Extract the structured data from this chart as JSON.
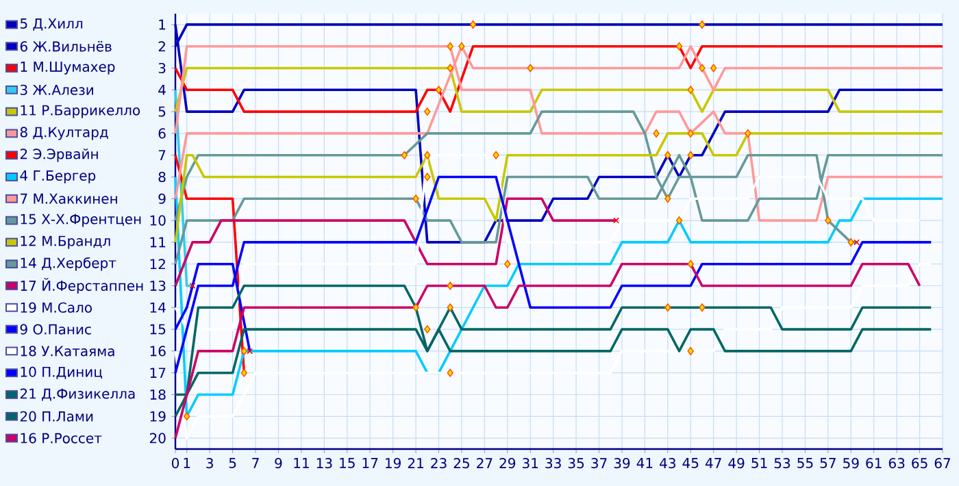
{
  "chart_data": {
    "type": "line",
    "xlim": [
      0,
      67
    ],
    "ylim": [
      20.5,
      0.5
    ],
    "xticks": [
      0,
      1,
      3,
      5,
      7,
      9,
      11,
      13,
      15,
      17,
      19,
      21,
      23,
      25,
      27,
      29,
      31,
      33,
      35,
      37,
      39,
      41,
      43,
      45,
      47,
      49,
      51,
      53,
      55,
      57,
      59,
      61,
      63,
      65,
      67
    ],
    "yticks": [
      1,
      2,
      3,
      4,
      5,
      6,
      7,
      8,
      9,
      10,
      11,
      12,
      13,
      14,
      15,
      16,
      17,
      18,
      19,
      20
    ],
    "grid": true,
    "legend": "left",
    "series": [
      {
        "name": "5 Д.Хилл",
        "color": "#0000c0",
        "x": [
          0,
          1,
          5,
          6,
          21,
          22,
          27,
          28,
          32,
          33,
          36,
          37,
          42,
          43,
          44,
          45,
          46,
          47,
          48,
          57,
          58,
          67
        ],
        "values": [
          1,
          5,
          5,
          4,
          4,
          11,
          11,
          10,
          10,
          9,
          9,
          8,
          8,
          7,
          8,
          7,
          7,
          6,
          5,
          5,
          4,
          4
        ]
      },
      {
        "name": "6 Ж.Вильнёв",
        "color": "#0000c0",
        "x": [
          0,
          1,
          67
        ],
        "values": [
          2,
          1,
          1
        ]
      },
      {
        "name": "1 М.Шумахер",
        "color": "#ff0000",
        "x": [
          0,
          1,
          5,
          6,
          21,
          22,
          23,
          24,
          26,
          44,
          45,
          46,
          67
        ],
        "values": [
          3,
          4,
          4,
          5,
          5,
          4,
          4,
          5,
          2,
          2,
          3,
          2,
          2
        ]
      },
      {
        "name": "3 Ж.Алези",
        "color": "#33ccee",
        "x": [
          0,
          1,
          1.5
        ],
        "values": [
          4,
          13,
          13
        ]
      },
      {
        "name": "11 Р.Баррикелло",
        "color": "#c8c800",
        "x": [
          0,
          1,
          24,
          25,
          31,
          32,
          45,
          46,
          47,
          57,
          58,
          67
        ],
        "values": [
          5,
          3,
          3,
          5,
          5,
          4,
          4,
          5,
          4,
          4,
          5,
          5
        ]
      },
      {
        "name": "8 Д.Култард",
        "color": "#ff9999",
        "x": [
          0,
          1,
          24,
          25,
          31,
          32,
          41,
          42,
          44,
          45,
          47,
          48,
          50,
          51,
          56,
          57,
          67
        ],
        "values": [
          6,
          2,
          2,
          4,
          4,
          6,
          6,
          5,
          5,
          6,
          5,
          6,
          6,
          10,
          10,
          8,
          8
        ]
      },
      {
        "name": "2 Э.Эрвайн",
        "color": "#ff0000",
        "x": [
          0,
          1,
          5,
          6
        ],
        "values": [
          7,
          9,
          9,
          17
        ]
      },
      {
        "name": "4 Г.Бергер",
        "color": "#00ccff",
        "x": [
          0,
          1,
          2,
          5,
          6,
          21,
          22,
          23,
          24,
          26,
          27,
          29,
          30,
          38,
          39,
          43,
          44,
          45,
          57,
          58,
          59,
          60,
          67
        ],
        "values": [
          8,
          19,
          18,
          18,
          16,
          16,
          17,
          17,
          16,
          14,
          13,
          13,
          12,
          12,
          11,
          11,
          10,
          11,
          11,
          10,
          10,
          9,
          9
        ]
      },
      {
        "name": "7 М.Хаккинен",
        "color": "#ff9999",
        "x": [
          0,
          1,
          22,
          25,
          26,
          44,
          45,
          46,
          47,
          48,
          67
        ],
        "values": [
          9,
          6,
          6,
          2,
          3,
          3,
          2,
          3,
          4,
          3,
          3
        ]
      },
      {
        "name": "15 Х-Х.Френтцен",
        "color": "#669999",
        "x": [
          0,
          1,
          2,
          20,
          22,
          31,
          32,
          40,
          41,
          42,
          43,
          44,
          49,
          50,
          56,
          57,
          59,
          59.5
        ],
        "values": [
          10,
          8,
          7,
          7,
          6,
          6,
          5,
          5,
          6,
          8,
          9,
          8,
          8,
          7,
          7,
          10,
          11,
          11
        ]
      },
      {
        "name": "12 М.Брандл",
        "color": "#c8c800",
        "x": [
          0,
          1,
          1.5,
          2.5,
          21,
          22,
          23,
          27,
          28,
          29,
          42,
          43,
          46,
          47,
          49,
          50,
          67
        ],
        "values": [
          11,
          7,
          7,
          8,
          8,
          7,
          9,
          9,
          10,
          7,
          7,
          6,
          6,
          7,
          7,
          6,
          6
        ]
      },
      {
        "name": "14 Д.Херберт",
        "color": "#669999",
        "x": [
          0,
          1,
          5,
          6,
          21,
          22,
          24,
          25,
          28,
          29,
          36,
          37,
          42,
          43,
          44,
          45,
          46,
          50,
          51,
          56,
          57,
          67
        ],
        "values": [
          12,
          10,
          10,
          9,
          9,
          10,
          10,
          11,
          11,
          8,
          8,
          9,
          9,
          8,
          7,
          8,
          10,
          10,
          9,
          9,
          7,
          7
        ]
      },
      {
        "name": "17 Й.Ферстаппен",
        "color": "#cc0066",
        "x": [
          0,
          1.5,
          3,
          4,
          20,
          22,
          28,
          29,
          32,
          33,
          38.5
        ],
        "values": [
          13,
          11,
          11,
          10,
          10,
          12,
          12,
          9,
          9,
          10,
          10
        ]
      },
      {
        "name": "19 М.Сало",
        "color": "#ffffff",
        "x": [
          0,
          1,
          5,
          6,
          21,
          22,
          28,
          29,
          38,
          39,
          44,
          45,
          50,
          51,
          56,
          57,
          60,
          61,
          65
        ],
        "values": [
          14,
          15,
          15,
          12,
          12,
          7,
          7,
          11,
          11,
          10,
          10,
          9,
          9,
          8,
          8,
          9,
          9,
          10,
          10
        ]
      },
      {
        "name": "9 О.Панис",
        "color": "#0000ff",
        "x": [
          0,
          1,
          2,
          5,
          6.5
        ],
        "values": [
          15,
          14,
          12,
          12,
          16
        ]
      },
      {
        "name": "18 У.Катаяма",
        "color": "#ffffff",
        "x": [
          0,
          1,
          2,
          5,
          7,
          38,
          39,
          47,
          48,
          52,
          53,
          59,
          60,
          64,
          65,
          66
        ],
        "values": [
          16,
          20,
          19,
          19,
          17,
          17,
          16,
          16,
          15,
          15,
          14,
          14,
          13,
          13,
          12,
          12
        ]
      },
      {
        "name": "10 П.Диниц",
        "color": "#0000ff",
        "x": [
          0,
          1,
          2,
          5,
          6,
          21,
          23,
          28,
          31,
          38,
          39,
          45,
          46,
          59,
          60,
          66
        ],
        "values": [
          17,
          15,
          13,
          13,
          11,
          11,
          8,
          8,
          14,
          14,
          13,
          13,
          12,
          12,
          11,
          11
        ]
      },
      {
        "name": "21 Д.Физикелла",
        "color": "#006666",
        "x": [
          0,
          1,
          2,
          5,
          6,
          20,
          21,
          22,
          24,
          25,
          38,
          39,
          52,
          53,
          59,
          60,
          66
        ],
        "values": [
          18,
          18,
          14,
          14,
          13,
          13,
          14,
          16,
          14,
          15,
          15,
          14,
          14,
          15,
          15,
          14,
          14
        ]
      },
      {
        "name": "20 П.Лами",
        "color": "#006666",
        "x": [
          0,
          2,
          5,
          6,
          21,
          22,
          23,
          24,
          38,
          39,
          43,
          44,
          45,
          47,
          48,
          59,
          60,
          66
        ],
        "values": [
          19,
          17,
          17,
          15,
          15,
          16,
          15,
          16,
          16,
          15,
          15,
          16,
          15,
          15,
          16,
          16,
          15,
          15
        ]
      },
      {
        "name": "16 Р.Россет",
        "color": "#cc0066",
        "x": [
          0,
          2,
          5,
          6,
          21,
          22,
          27,
          28,
          29,
          30,
          38,
          39,
          45,
          46,
          59,
          60,
          64,
          65
        ],
        "values": [
          20,
          16,
          16,
          14,
          14,
          13,
          13,
          14,
          14,
          13,
          13,
          12,
          12,
          13,
          13,
          12,
          12,
          13
        ]
      },
      {
        "type": "scatter",
        "marker": "diamond",
        "color": "#ffdd00",
        "x": [
          1,
          6,
          6,
          20,
          21,
          21,
          22,
          22,
          22,
          22,
          23,
          24,
          24,
          24,
          24,
          24,
          25,
          26,
          28,
          29,
          31,
          42,
          43,
          43,
          43,
          44,
          44,
          45,
          45,
          45,
          45,
          45,
          46,
          46,
          46,
          47,
          50,
          57,
          59
        ],
        "values": [
          19,
          16,
          17,
          7,
          9,
          14,
          5,
          7,
          8,
          15,
          4,
          2,
          3,
          13,
          14,
          17,
          2,
          1,
          7,
          12,
          3,
          6,
          7,
          9,
          14,
          2,
          10,
          4,
          6,
          7,
          12,
          16,
          1,
          3,
          14,
          3,
          6,
          10,
          11
        ]
      },
      {
        "type": "scatter",
        "marker": "cross",
        "color": "#ff0000",
        "x": [
          1.5,
          6.5,
          38.5,
          59.5
        ],
        "values": [
          13,
          16,
          10,
          11
        ]
      }
    ]
  }
}
